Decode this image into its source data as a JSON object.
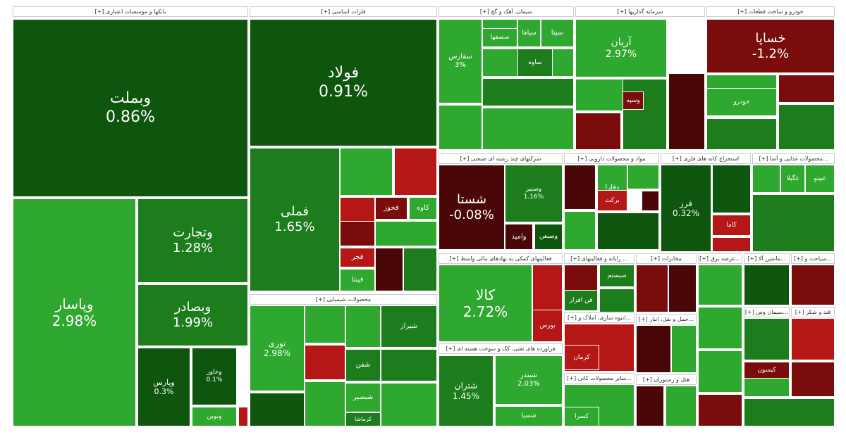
{
  "chart_data": {
    "type": "heatmap",
    "title": "Market treemap",
    "sectors": [
      "بانکها و موسسات اعتباری [+]",
      "فلزات اساسی [+]",
      "سیمان، آهک و گچ [+]",
      "سرمایه گذاریها [+]",
      "خودرو و ساخت قطعات [+]",
      "محصولات شیمیایی [+]",
      "شرکتهای چند رشته ای صنعتی [+]",
      "مواد و محصولات دارویی [+]",
      "استخراج کانه های فلزی [+]",
      "...محصولات غذایی و آشا [+]",
      "فعالیتهای کمکی به نهادهای مالی واسط [+]",
      "... رایانه و فعالیتهای [+]",
      "مخابرات [+]",
      "...عرضه برق [+]",
      "...ماشین آلا [+]",
      "...سیاحت و [+]",
      "فراورده های نفتی، کک و سوخت هسته ای [+]",
      "...انبوه سازی، املاک و [+]",
      "...حمل و نقل، انبار [+]",
      "...سایر محصولات کانی [+]",
      "هتل و رستوران [+]",
      "قند و شکر [+]",
      "...سیمان وص [+]"
    ],
    "tiles": [
      {
        "symbol": "وبملت",
        "change": "0.86%"
      },
      {
        "symbol": "وپاسار",
        "change": "2.98%"
      },
      {
        "symbol": "وتجارت",
        "change": "1.28%"
      },
      {
        "symbol": "وبصادر",
        "change": "1.99%"
      },
      {
        "symbol": "وپارس",
        "change": "0.3%"
      },
      {
        "symbol": "وخاور",
        "change": "0.1%"
      },
      {
        "symbol": "ونوین",
        "change": ""
      },
      {
        "symbol": "فولاد",
        "change": "0.91%"
      },
      {
        "symbol": "فملی",
        "change": "1.65%"
      },
      {
        "symbol": "کاوه",
        "change": ""
      },
      {
        "symbol": "فخوز",
        "change": ""
      },
      {
        "symbol": "فجر",
        "change": ""
      },
      {
        "symbol": "فینتا",
        "change": ""
      },
      {
        "symbol": "نوری",
        "change": "2.98%"
      },
      {
        "symbol": "شیراز",
        "change": ""
      },
      {
        "symbol": "شفن",
        "change": ""
      },
      {
        "symbol": "شبصیر",
        "change": ""
      },
      {
        "symbol": "کرماشا",
        "change": ""
      },
      {
        "symbol": "سفارس",
        "change": "3%"
      },
      {
        "symbol": "سیتا",
        "change": ""
      },
      {
        "symbol": "سپاها",
        "change": ""
      },
      {
        "symbol": "سصفها",
        "change": ""
      },
      {
        "symbol": "ساوه",
        "change": ""
      },
      {
        "symbol": "آریان",
        "change": "2.97%"
      },
      {
        "symbol": "خساپا",
        "change": "-1.2%"
      },
      {
        "symbol": "شستا",
        "change": "-0.08%"
      },
      {
        "symbol": "وصنیر",
        "change": "1.16%"
      },
      {
        "symbol": "وامید",
        "change": ""
      },
      {
        "symbol": "وصنعن",
        "change": ""
      },
      {
        "symbol": "دفارا",
        "change": ""
      },
      {
        "symbol": "برکت",
        "change": ""
      },
      {
        "symbol": "فرز",
        "change": "0.32%"
      },
      {
        "symbol": "کاما",
        "change": ""
      },
      {
        "symbol": "غگیلا",
        "change": ""
      },
      {
        "symbol": "غبینو",
        "change": ""
      },
      {
        "symbol": "کالا",
        "change": "2.72%"
      },
      {
        "symbol": "بورس",
        "change": ""
      },
      {
        "symbol": "سیستم",
        "change": ""
      },
      {
        "symbol": "فن افزار",
        "change": ""
      },
      {
        "symbol": "شتران",
        "change": "1.45%"
      },
      {
        "symbol": "شبندر",
        "change": "2.03%"
      },
      {
        "symbol": "شسپا",
        "change": ""
      },
      {
        "symbol": "کرمان",
        "change": ""
      },
      {
        "symbol": "کیسون",
        "change": ""
      },
      {
        "symbol": "کسرا",
        "change": ""
      },
      {
        "symbol": "وسپه",
        "change": ""
      },
      {
        "symbol": "خودرو",
        "change": ""
      }
    ]
  }
}
